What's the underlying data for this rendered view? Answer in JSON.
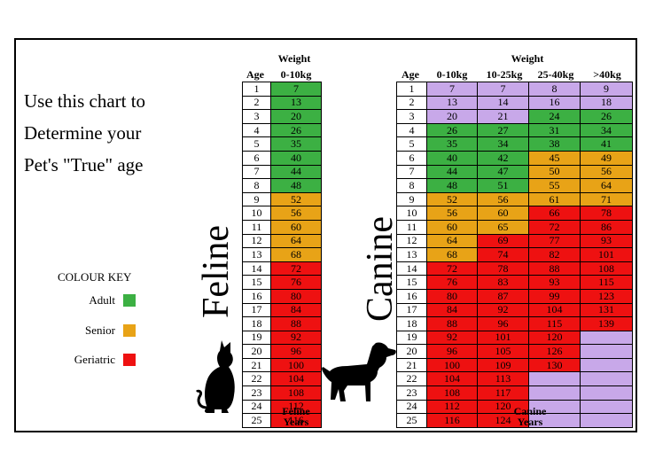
{
  "intro_lines": [
    "Use this chart to",
    "Determine your",
    "Pet's \"True\" age"
  ],
  "colour_key": {
    "title": "COLOUR KEY",
    "items": [
      {
        "label": "Adult",
        "color": "#3cb043"
      },
      {
        "label": "Senior",
        "color": "#e8a317"
      },
      {
        "label": "Geriatric",
        "color": "#ee1111"
      }
    ]
  },
  "feline": {
    "label": "Feline",
    "weight_title": "Weight",
    "age_header": "Age",
    "columns": [
      "0-10kg"
    ],
    "footer": [
      "Feline",
      "Years"
    ],
    "rows": [
      {
        "age": "1",
        "values": [
          [
            "7",
            "a"
          ]
        ]
      },
      {
        "age": "2",
        "values": [
          [
            "13",
            "a"
          ]
        ]
      },
      {
        "age": "3",
        "values": [
          [
            "20",
            "a"
          ]
        ]
      },
      {
        "age": "4",
        "values": [
          [
            "26",
            "a"
          ]
        ]
      },
      {
        "age": "5",
        "values": [
          [
            "35",
            "a"
          ]
        ]
      },
      {
        "age": "6",
        "values": [
          [
            "40",
            "a"
          ]
        ]
      },
      {
        "age": "7",
        "values": [
          [
            "44",
            "a"
          ]
        ]
      },
      {
        "age": "8",
        "values": [
          [
            "48",
            "a"
          ]
        ]
      },
      {
        "age": "9",
        "values": [
          [
            "52",
            "s"
          ]
        ]
      },
      {
        "age": "10",
        "values": [
          [
            "56",
            "s"
          ]
        ]
      },
      {
        "age": "11",
        "values": [
          [
            "60",
            "s"
          ]
        ]
      },
      {
        "age": "12",
        "values": [
          [
            "64",
            "s"
          ]
        ]
      },
      {
        "age": "13",
        "values": [
          [
            "68",
            "s"
          ]
        ]
      },
      {
        "age": "14",
        "values": [
          [
            "72",
            "g"
          ]
        ]
      },
      {
        "age": "15",
        "values": [
          [
            "76",
            "g"
          ]
        ]
      },
      {
        "age": "16",
        "values": [
          [
            "80",
            "g"
          ]
        ]
      },
      {
        "age": "17",
        "values": [
          [
            "84",
            "g"
          ]
        ]
      },
      {
        "age": "18",
        "values": [
          [
            "88",
            "g"
          ]
        ]
      },
      {
        "age": "19",
        "values": [
          [
            "92",
            "g"
          ]
        ]
      },
      {
        "age": "20",
        "values": [
          [
            "96",
            "g"
          ]
        ]
      },
      {
        "age": "21",
        "values": [
          [
            "100",
            "g"
          ]
        ]
      },
      {
        "age": "22",
        "values": [
          [
            "104",
            "g"
          ]
        ]
      },
      {
        "age": "23",
        "values": [
          [
            "108",
            "g"
          ]
        ]
      },
      {
        "age": "24",
        "values": [
          [
            "112",
            "g"
          ]
        ]
      },
      {
        "age": "25",
        "values": [
          [
            "116",
            "g"
          ]
        ]
      }
    ]
  },
  "canine": {
    "label": "Canine",
    "weight_title": "Weight",
    "age_header": "Age",
    "columns": [
      "0-10kg",
      "10-25kg",
      "25-40kg",
      ">40kg"
    ],
    "footer": [
      "Canine",
      "Years"
    ],
    "rows": [
      {
        "age": "1",
        "values": [
          [
            "7",
            "p"
          ],
          [
            "7",
            "p"
          ],
          [
            "8",
            "p"
          ],
          [
            "9",
            "p"
          ]
        ]
      },
      {
        "age": "2",
        "values": [
          [
            "13",
            "p"
          ],
          [
            "14",
            "p"
          ],
          [
            "16",
            "p"
          ],
          [
            "18",
            "p"
          ]
        ]
      },
      {
        "age": "3",
        "values": [
          [
            "20",
            "p"
          ],
          [
            "21",
            "p"
          ],
          [
            "24",
            "a"
          ],
          [
            "26",
            "a"
          ]
        ]
      },
      {
        "age": "4",
        "values": [
          [
            "26",
            "a"
          ],
          [
            "27",
            "a"
          ],
          [
            "31",
            "a"
          ],
          [
            "34",
            "a"
          ]
        ]
      },
      {
        "age": "5",
        "values": [
          [
            "35",
            "a"
          ],
          [
            "34",
            "a"
          ],
          [
            "38",
            "a"
          ],
          [
            "41",
            "a"
          ]
        ]
      },
      {
        "age": "6",
        "values": [
          [
            "40",
            "a"
          ],
          [
            "42",
            "a"
          ],
          [
            "45",
            "s"
          ],
          [
            "49",
            "s"
          ]
        ]
      },
      {
        "age": "7",
        "values": [
          [
            "44",
            "a"
          ],
          [
            "47",
            "a"
          ],
          [
            "50",
            "s"
          ],
          [
            "56",
            "s"
          ]
        ]
      },
      {
        "age": "8",
        "values": [
          [
            "48",
            "a"
          ],
          [
            "51",
            "a"
          ],
          [
            "55",
            "s"
          ],
          [
            "64",
            "s"
          ]
        ]
      },
      {
        "age": "9",
        "values": [
          [
            "52",
            "s"
          ],
          [
            "56",
            "s"
          ],
          [
            "61",
            "s"
          ],
          [
            "71",
            "s"
          ]
        ]
      },
      {
        "age": "10",
        "values": [
          [
            "56",
            "s"
          ],
          [
            "60",
            "s"
          ],
          [
            "66",
            "g"
          ],
          [
            "78",
            "g"
          ]
        ]
      },
      {
        "age": "11",
        "values": [
          [
            "60",
            "s"
          ],
          [
            "65",
            "s"
          ],
          [
            "72",
            "g"
          ],
          [
            "86",
            "g"
          ]
        ]
      },
      {
        "age": "12",
        "values": [
          [
            "64",
            "s"
          ],
          [
            "69",
            "g"
          ],
          [
            "77",
            "g"
          ],
          [
            "93",
            "g"
          ]
        ]
      },
      {
        "age": "13",
        "values": [
          [
            "68",
            "s"
          ],
          [
            "74",
            "g"
          ],
          [
            "82",
            "g"
          ],
          [
            "101",
            "g"
          ]
        ]
      },
      {
        "age": "14",
        "values": [
          [
            "72",
            "g"
          ],
          [
            "78",
            "g"
          ],
          [
            "88",
            "g"
          ],
          [
            "108",
            "g"
          ]
        ]
      },
      {
        "age": "15",
        "values": [
          [
            "76",
            "g"
          ],
          [
            "83",
            "g"
          ],
          [
            "93",
            "g"
          ],
          [
            "115",
            "g"
          ]
        ]
      },
      {
        "age": "16",
        "values": [
          [
            "80",
            "g"
          ],
          [
            "87",
            "g"
          ],
          [
            "99",
            "g"
          ],
          [
            "123",
            "g"
          ]
        ]
      },
      {
        "age": "17",
        "values": [
          [
            "84",
            "g"
          ],
          [
            "92",
            "g"
          ],
          [
            "104",
            "g"
          ],
          [
            "131",
            "g"
          ]
        ]
      },
      {
        "age": "18",
        "values": [
          [
            "88",
            "g"
          ],
          [
            "96",
            "g"
          ],
          [
            "115",
            "g"
          ],
          [
            "139",
            "g"
          ]
        ]
      },
      {
        "age": "19",
        "values": [
          [
            "92",
            "g"
          ],
          [
            "101",
            "g"
          ],
          [
            "120",
            "g"
          ],
          [
            "",
            "e"
          ]
        ]
      },
      {
        "age": "20",
        "values": [
          [
            "96",
            "g"
          ],
          [
            "105",
            "g"
          ],
          [
            "126",
            "g"
          ],
          [
            "",
            "e"
          ]
        ]
      },
      {
        "age": "21",
        "values": [
          [
            "100",
            "g"
          ],
          [
            "109",
            "g"
          ],
          [
            "130",
            "g"
          ],
          [
            "",
            "e"
          ]
        ]
      },
      {
        "age": "22",
        "values": [
          [
            "104",
            "g"
          ],
          [
            "113",
            "g"
          ],
          [
            "",
            "e"
          ],
          [
            "",
            "e"
          ]
        ]
      },
      {
        "age": "23",
        "values": [
          [
            "108",
            "g"
          ],
          [
            "117",
            "g"
          ],
          [
            "",
            "e"
          ],
          [
            "",
            "e"
          ]
        ]
      },
      {
        "age": "24",
        "values": [
          [
            "112",
            "g"
          ],
          [
            "120",
            "g"
          ],
          [
            "",
            "e"
          ],
          [
            "",
            "e"
          ]
        ]
      },
      {
        "age": "25",
        "values": [
          [
            "116",
            "g"
          ],
          [
            "124",
            "g"
          ],
          [
            "",
            "e"
          ],
          [
            "",
            "e"
          ]
        ]
      }
    ]
  }
}
